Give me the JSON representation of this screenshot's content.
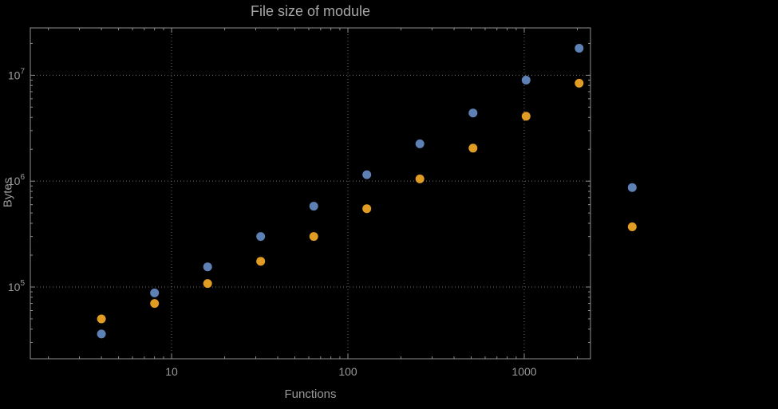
{
  "chart_data": {
    "type": "scatter",
    "title": "File size of module",
    "xlabel": "Functions",
    "ylabel": "Bytes",
    "x_scale": "log",
    "y_scale": "log",
    "grid": "dotted",
    "legend": "none",
    "x_gridlines": [
      10,
      100,
      1000
    ],
    "y_gridlines": [
      100000,
      1000000,
      10000000
    ],
    "x_frame_range": [
      1.58,
      2375
    ],
    "y_frame_range": [
      21000,
      28000000
    ],
    "theme": {
      "background": "#000000",
      "frame": "#8f8f8f",
      "grid": "#6b6b6b",
      "text": "#9a9a9a",
      "title": "#a6a6a6"
    },
    "series": [
      {
        "name": "blue",
        "color": "#5e81b5",
        "x": [
          4,
          8,
          16,
          32,
          64,
          128,
          256,
          512,
          1024,
          2048,
          4096
        ],
        "y": [
          36000,
          88000,
          155000,
          300000,
          580000,
          1150000,
          2250000,
          4400000,
          9000000,
          18000000,
          870000
        ]
      },
      {
        "name": "orange",
        "color": "#e19c24",
        "x": [
          4,
          8,
          16,
          32,
          64,
          128,
          256,
          512,
          1024,
          2048,
          4096
        ],
        "y": [
          50000,
          70000,
          108000,
          175000,
          300000,
          550000,
          1050000,
          2050000,
          4100000,
          8400000,
          370000
        ]
      }
    ]
  }
}
